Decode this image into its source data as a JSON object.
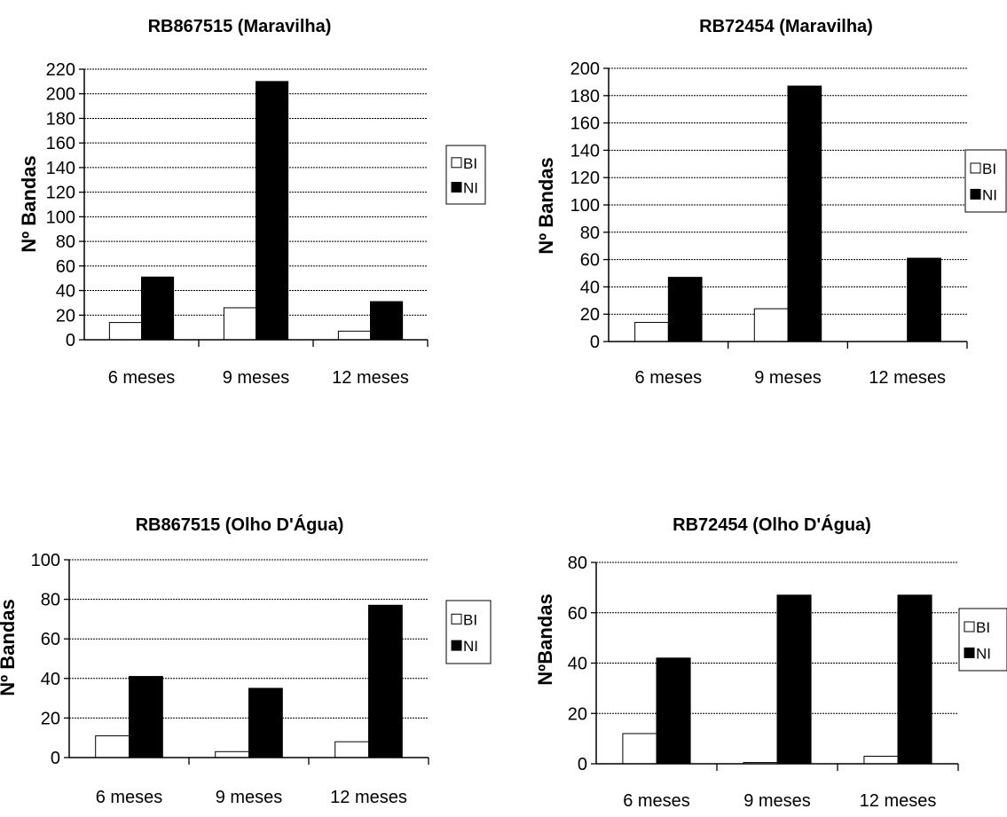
{
  "chart_data": [
    {
      "type": "bar",
      "title": "RB867515 (Maravilha)",
      "ylabel": "Nº Bandas",
      "categories": [
        "6 meses",
        "9 meses",
        "12 meses"
      ],
      "ylim": [
        0,
        220
      ],
      "yticks": [
        0,
        20,
        40,
        60,
        80,
        100,
        120,
        140,
        160,
        180,
        200,
        220
      ],
      "grid": true,
      "legend": "right",
      "series": [
        {
          "name": "BI",
          "color": "#ffffff",
          "values": [
            14,
            26,
            7
          ]
        },
        {
          "name": "NI",
          "color": "#000000",
          "values": [
            51,
            210,
            31
          ]
        }
      ]
    },
    {
      "type": "bar",
      "title": "RB72454 (Maravilha)",
      "ylabel": "Nº Bandas",
      "categories": [
        "6 meses",
        "9 meses",
        "12 meses"
      ],
      "ylim": [
        0,
        200
      ],
      "yticks": [
        0,
        20,
        40,
        60,
        80,
        100,
        120,
        140,
        160,
        180,
        200
      ],
      "grid": true,
      "legend": "right",
      "series": [
        {
          "name": "BI",
          "color": "#ffffff",
          "values": [
            14,
            24,
            0
          ]
        },
        {
          "name": "NI",
          "color": "#000000",
          "values": [
            47,
            187,
            61
          ]
        }
      ]
    },
    {
      "type": "bar",
      "title": "RB867515 (Olho D'Água)",
      "ylabel": "Nº Bandas",
      "categories": [
        "6 meses",
        "9 meses",
        "12 meses"
      ],
      "ylim": [
        0,
        100
      ],
      "yticks": [
        0,
        20,
        40,
        60,
        80,
        100
      ],
      "grid": true,
      "legend": "right",
      "series": [
        {
          "name": "BI",
          "color": "#ffffff",
          "values": [
            11,
            3,
            8
          ]
        },
        {
          "name": "NI",
          "color": "#000000",
          "values": [
            41,
            35,
            77
          ]
        }
      ]
    },
    {
      "type": "bar",
      "title": "RB72454 (Olho D'Água)",
      "ylabel": "NºBandas",
      "categories": [
        "6 meses",
        "9 meses",
        "12 meses"
      ],
      "ylim": [
        0,
        80
      ],
      "yticks": [
        0,
        20,
        40,
        60,
        80
      ],
      "grid": true,
      "legend": "right",
      "series": [
        {
          "name": "BI",
          "color": "#ffffff",
          "values": [
            12,
            0.5,
            3
          ]
        },
        {
          "name": "NI",
          "color": "#000000",
          "values": [
            42,
            67,
            67
          ]
        }
      ]
    }
  ]
}
